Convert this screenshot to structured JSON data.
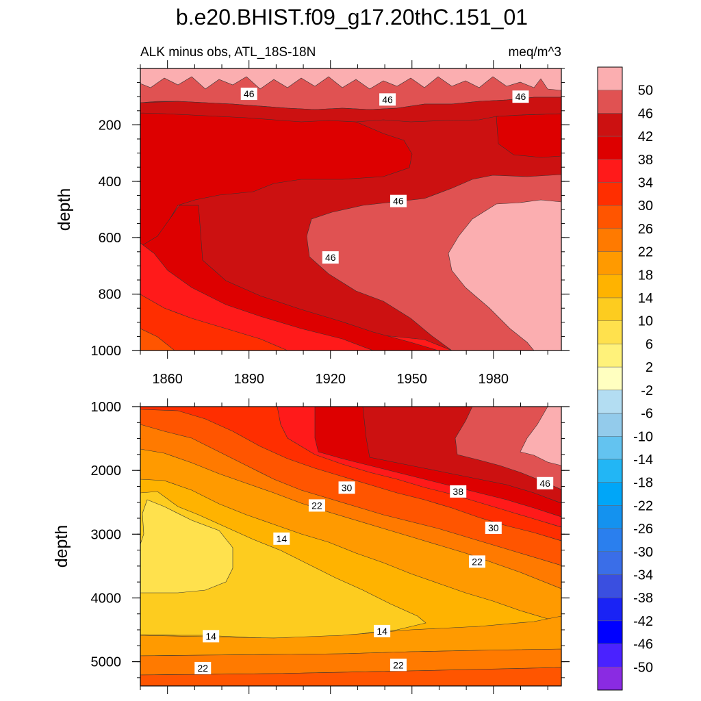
{
  "chart_data": {
    "type": "contour",
    "title": "b.e20.BHIST.f09_g17.20thC.151_01",
    "subtitle_left": "ALK minus obs, ATL_18S-18N",
    "subtitle_right": "meq/m^3",
    "ylabel": "depth",
    "xlim": [
      1850,
      2005
    ],
    "x_ticks": [
      1860,
      1890,
      1920,
      1950,
      1980
    ],
    "colorbar_levels": [
      50,
      46,
      42,
      38,
      34,
      30,
      26,
      22,
      18,
      14,
      10,
      6,
      2,
      -2,
      -6,
      -10,
      -14,
      -18,
      -22,
      -26,
      -30,
      -34,
      -38,
      -42,
      -46,
      -50
    ],
    "colorbar_colors": [
      "#FBAEB0",
      "#E05252",
      "#CC1111",
      "#DD0000",
      "#FF1A1A",
      "#FF2E00",
      "#FF5500",
      "#FF7A00",
      "#FF9A00",
      "#FFB300",
      "#FDCC1F",
      "#FFE14D",
      "#FFF27A",
      "#FFFFC0",
      "#B3DDF2",
      "#93CBEB",
      "#63C3F0",
      "#22B6F5",
      "#00A6F8",
      "#1492EF",
      "#2A7FEE",
      "#3A6EE8",
      "#3A4FE0",
      "#1A23F5",
      "#0000FF",
      "#4A22FF",
      "#8A2BE2"
    ],
    "panels": [
      {
        "name": "upper",
        "ylim": [
          0,
          1000
        ],
        "y_ticks": [
          200,
          400,
          600,
          800,
          1000
        ],
        "contour_labels": [
          {
            "text": "46",
            "x": 1890,
            "y": 90
          },
          {
            "text": "46",
            "x": 1941,
            "y": 110
          },
          {
            "text": "46",
            "x": 1990,
            "y": 100
          },
          {
            "text": "46",
            "x": 1945,
            "y": 470
          },
          {
            "text": "46",
            "x": 1920,
            "y": 670
          }
        ]
      },
      {
        "name": "lower",
        "ylim": [
          1000,
          5380
        ],
        "y_ticks": [
          1000,
          2000,
          3000,
          4000,
          5000
        ],
        "contour_labels": [
          {
            "text": "30",
            "x": 1926,
            "y": 2270
          },
          {
            "text": "22",
            "x": 1915,
            "y": 2550
          },
          {
            "text": "14",
            "x": 1902,
            "y": 3070
          },
          {
            "text": "38",
            "x": 1967,
            "y": 2330
          },
          {
            "text": "46",
            "x": 1999,
            "y": 2200
          },
          {
            "text": "30",
            "x": 1980,
            "y": 2900
          },
          {
            "text": "22",
            "x": 1974,
            "y": 3430
          },
          {
            "text": "14",
            "x": 1876,
            "y": 4600
          },
          {
            "text": "14",
            "x": 1939,
            "y": 4520
          },
          {
            "text": "22",
            "x": 1873,
            "y": 5100
          },
          {
            "text": "22",
            "x": 1945,
            "y": 5050
          }
        ]
      }
    ]
  }
}
